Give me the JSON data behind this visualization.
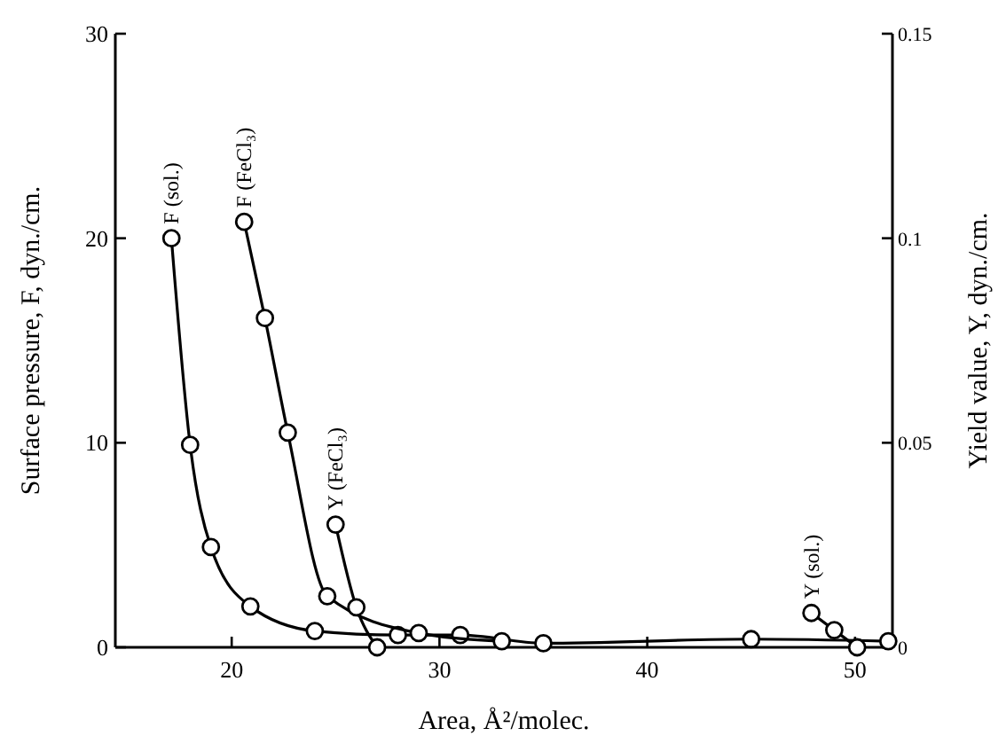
{
  "chart_data": {
    "type": "line",
    "xlabel": "Area, Å²/molec.",
    "ylabel": "Surface pressure, F, dyn./cm.",
    "y2label": "Yield value, Y, dyn./cm.",
    "xlim": [
      14.4,
      51.8
    ],
    "xticks": [
      20,
      30,
      40,
      50
    ],
    "ylim": [
      0,
      30
    ],
    "yticks": [
      0,
      10,
      20,
      30
    ],
    "y2lim": [
      0,
      0.15
    ],
    "y2ticks": [
      0,
      0.05,
      0.1,
      0.15
    ],
    "marker": "circle",
    "line_style": "solid",
    "series": [
      {
        "name": "F (sol.)",
        "color": "#000000",
        "x": [
          17.1,
          18.0,
          19.0,
          20.9,
          24.0,
          28.0,
          31.0,
          35.0,
          45.0,
          51.6
        ],
        "values": [
          20,
          9.9,
          4.9,
          2.0,
          0.8,
          0.6,
          0.6,
          0.2,
          0.4,
          0.3
        ]
      },
      {
        "name": "F (FeCl₃)",
        "color": "#000000",
        "x": [
          20.6,
          21.6,
          22.7,
          24.6,
          29.0,
          33.0
        ],
        "values": [
          20.8,
          16.1,
          10.5,
          2.5,
          0.7,
          0.3
        ]
      },
      {
        "name": "Y (FeCl₃)",
        "color": "#000000",
        "axis": "y2",
        "x": [
          25.0,
          26.0,
          27.0
        ],
        "values": [
          0.03,
          0.0098,
          0
        ]
      },
      {
        "name": "Y (sol.)",
        "color": "#000000",
        "axis": "y2",
        "x": [
          47.9,
          49.0,
          50.1
        ],
        "values": [
          0.0084,
          0.0042,
          0
        ]
      }
    ]
  }
}
